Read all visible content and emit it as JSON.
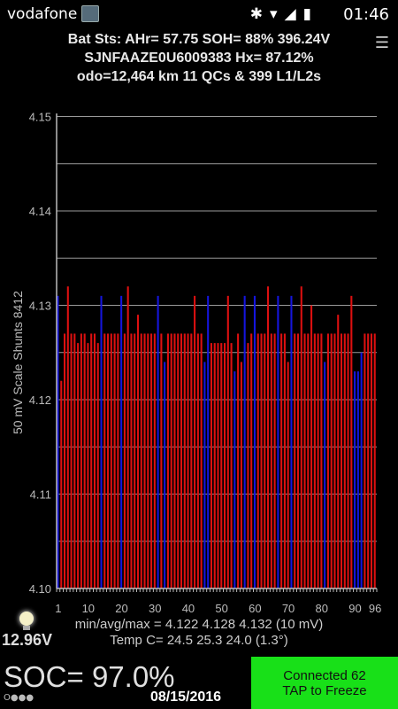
{
  "status_bar": {
    "carrier": "vodafone P",
    "time": "01:46",
    "icons": [
      "bluetooth-icon",
      "wifi-icon",
      "signal-icon",
      "battery-icon"
    ]
  },
  "header": {
    "line1": "Bat Sts: AHr= 57.75 SOH= 88% 396.24V",
    "line2": "SJNFAAZE0U6009383   Hx= 87.12%",
    "line3": "odo=12,464 km 11 QCs & 399 L1/L2s"
  },
  "chart_data": {
    "type": "bar",
    "ylabel": "50 mV Scale   Shunts 8412",
    "ylim": [
      4.1,
      4.155
    ],
    "yticks": [
      "4.10",
      "4.11",
      "4.12",
      "4.13",
      "4.14",
      "4.15"
    ],
    "xticks": [
      "1",
      "10",
      "20",
      "30",
      "40",
      "50",
      "60",
      "70",
      "80",
      "90",
      "96"
    ],
    "x": [
      1,
      2,
      3,
      4,
      5,
      6,
      7,
      8,
      9,
      10,
      11,
      12,
      13,
      14,
      15,
      16,
      17,
      18,
      19,
      20,
      21,
      22,
      23,
      24,
      25,
      26,
      27,
      28,
      29,
      30,
      31,
      32,
      33,
      34,
      35,
      36,
      37,
      38,
      39,
      40,
      41,
      42,
      43,
      44,
      45,
      46,
      47,
      48,
      49,
      50,
      51,
      52,
      53,
      54,
      55,
      56,
      57,
      58,
      59,
      60,
      61,
      62,
      63,
      64,
      65,
      66,
      67,
      68,
      69,
      70,
      71,
      72,
      73,
      74,
      75,
      76,
      77,
      78,
      79,
      80,
      81,
      82,
      83,
      84,
      85,
      86,
      87,
      88,
      89,
      90,
      91,
      92,
      93,
      94,
      95,
      96
    ],
    "values": [
      4.131,
      4.122,
      4.127,
      4.132,
      4.127,
      4.127,
      4.126,
      4.127,
      4.127,
      4.126,
      4.127,
      4.127,
      4.126,
      4.131,
      4.127,
      4.127,
      4.127,
      4.127,
      4.127,
      4.131,
      4.127,
      4.132,
      4.127,
      4.127,
      4.129,
      4.127,
      4.127,
      4.127,
      4.127,
      4.127,
      4.131,
      4.127,
      4.124,
      4.127,
      4.127,
      4.127,
      4.127,
      4.127,
      4.127,
      4.127,
      4.127,
      4.131,
      4.127,
      4.127,
      4.124,
      4.131,
      4.126,
      4.126,
      4.126,
      4.126,
      4.126,
      4.131,
      4.126,
      4.123,
      4.127,
      4.124,
      4.131,
      4.126,
      4.127,
      4.131,
      4.127,
      4.127,
      4.127,
      4.132,
      4.127,
      4.127,
      4.131,
      4.127,
      4.127,
      4.124,
      4.131,
      4.127,
      4.127,
      4.132,
      4.127,
      4.127,
      4.13,
      4.127,
      4.127,
      4.127,
      4.124,
      4.127,
      4.127,
      4.127,
      4.129,
      4.127,
      4.127,
      4.127,
      4.131,
      4.123,
      4.123,
      4.125,
      4.127,
      4.127,
      4.127,
      4.127
    ],
    "highlight_indices": [
      1,
      14,
      20,
      31,
      33,
      45,
      46,
      54,
      57,
      60,
      67,
      71,
      81,
      90,
      91,
      92
    ],
    "colors": {
      "bar": "#dd1010",
      "highlight": "#1515dd",
      "grid": "#9a9a9a",
      "axis": "#bbbbbb"
    }
  },
  "stats": {
    "line1": "min/avg/max = 4.122  4.128  4.132  (10 mV)",
    "line2": "Temp C= 24.5  25.3  24.0  (1.3°)"
  },
  "footer": {
    "voltage": "12.96V",
    "soc": "SOC= 97.0%",
    "soc_dots": "O●●●",
    "date": "08/15/2016",
    "connect_line1": "Connected 62",
    "connect_line2": "TAP to Freeze",
    "button_color": "#18e018"
  }
}
